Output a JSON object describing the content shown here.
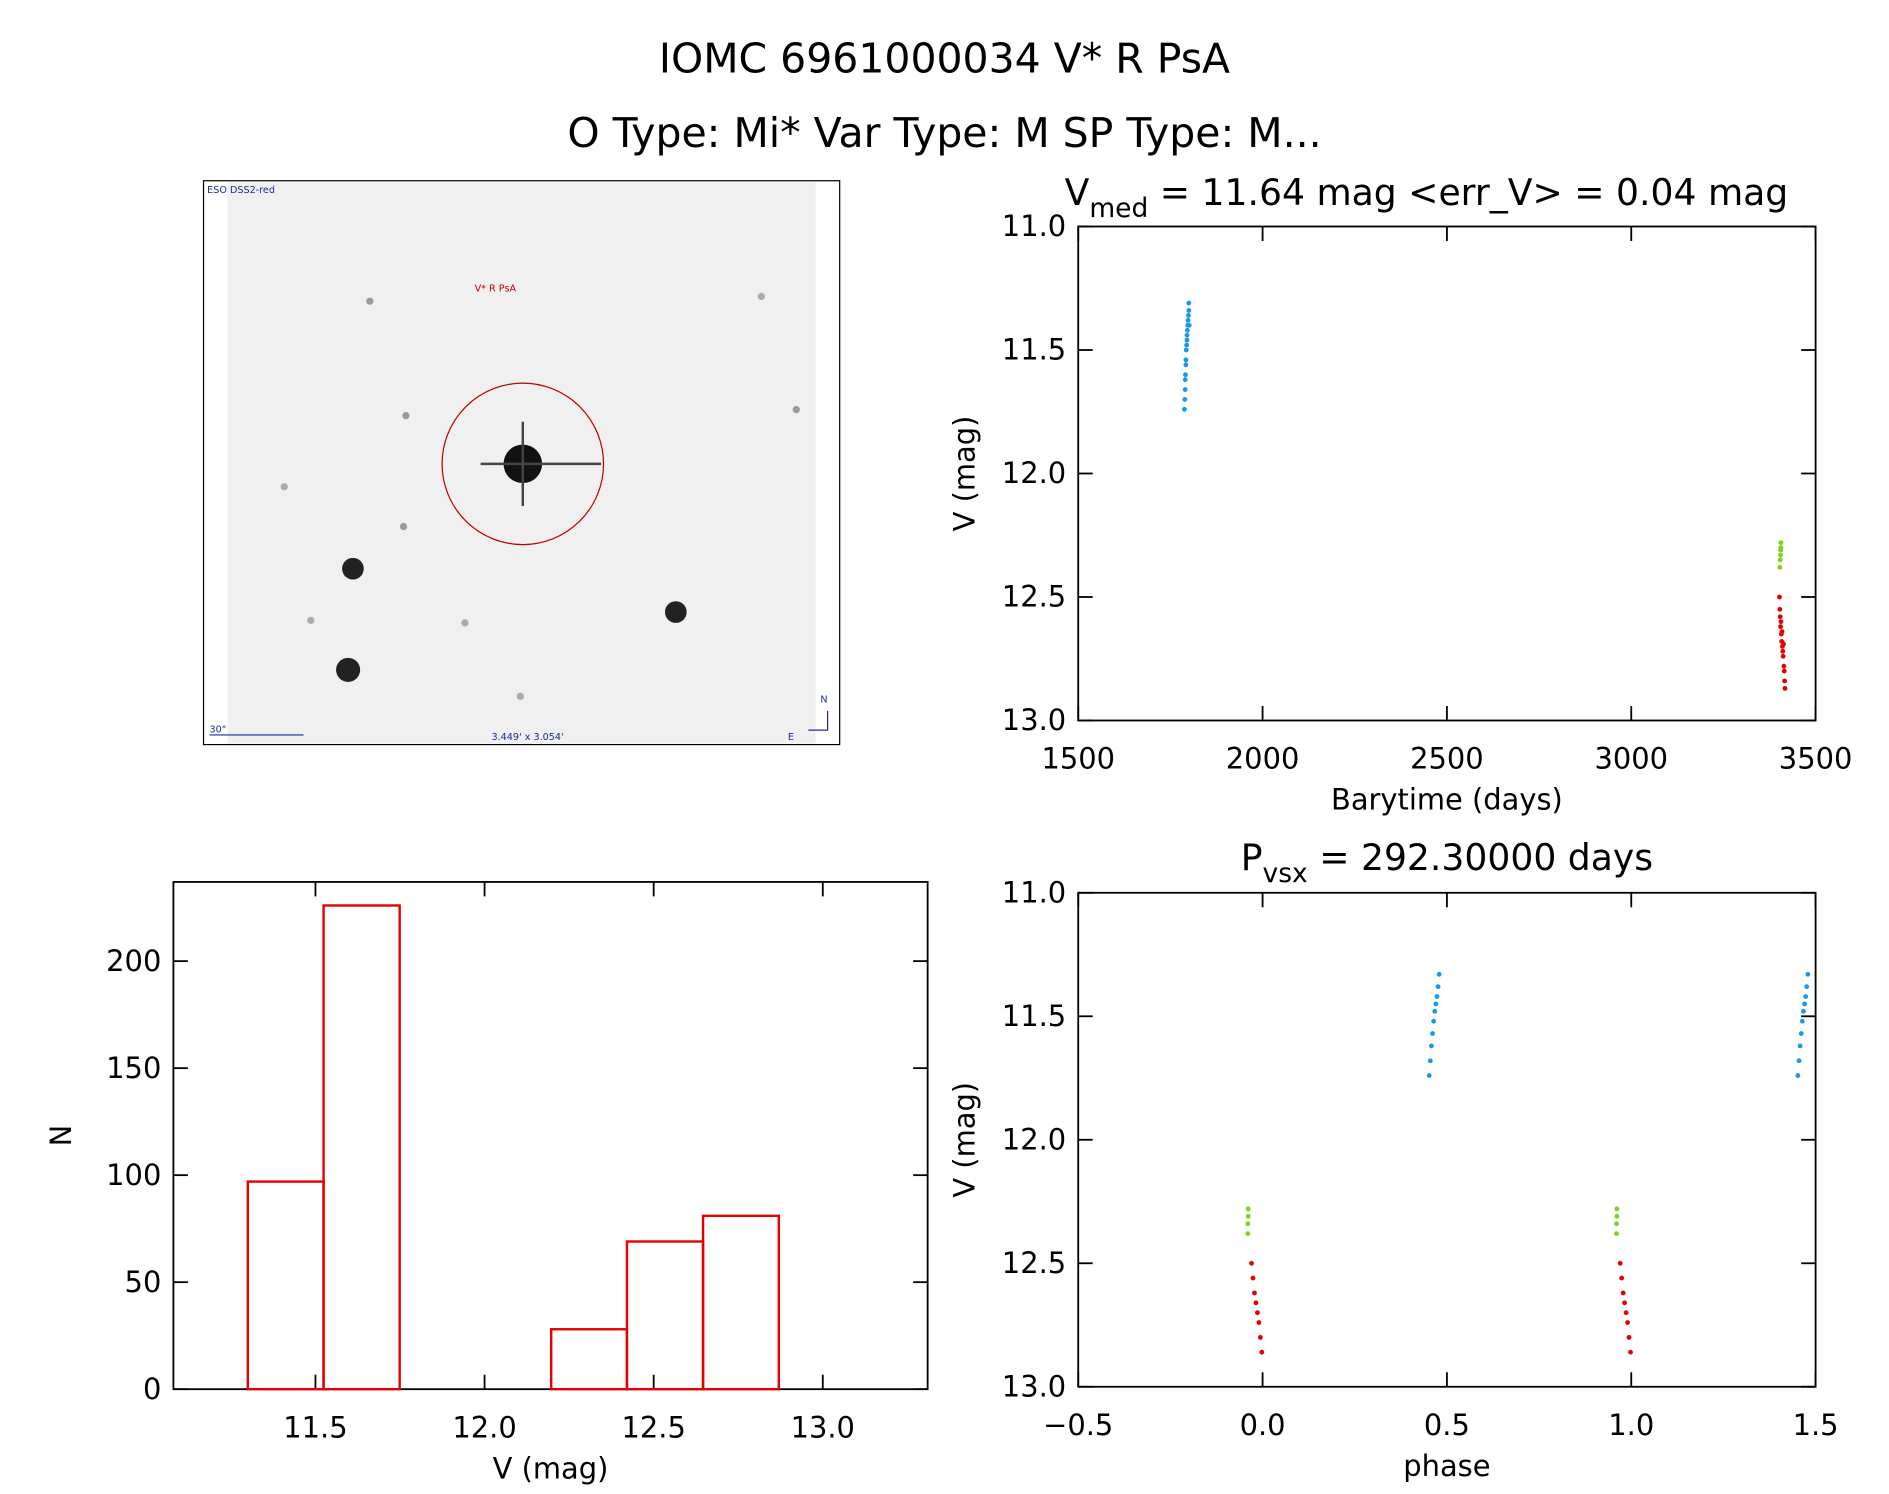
{
  "header": {
    "title": "IOMC 6961000034   V* R PsA",
    "subtitle": "O Type: Mi*  Var Type: M   SP Type: M..."
  },
  "image_panel": {
    "survey": "ESO DSS2-red",
    "target": "V* R PsA",
    "scale": "30\"",
    "size": "3.449' x 3.054'",
    "north": "N",
    "east": "E"
  },
  "chart_data": [
    {
      "type": "scatter",
      "title": {
        "main": "V",
        "sub": "med",
        "rest": " = 11.64 mag <err_V> = 0.04 mag"
      },
      "xlabel": "Barytime (days)",
      "ylabel": "V (mag)",
      "xlim": [
        1500,
        3500
      ],
      "xticks": [
        1500,
        2000,
        2500,
        3000,
        3500
      ],
      "ylim": [
        13,
        11
      ],
      "yticks": [
        {
          "value": 11,
          "label": "11.0"
        },
        11.5,
        {
          "value": 12,
          "label": "12.0"
        },
        12.5,
        {
          "value": 13,
          "label": "13.0"
        }
      ],
      "series": [
        {
          "color": "#1a9ae6",
          "x": [
            1788,
            1789,
            1790,
            1790,
            1791,
            1792,
            1792,
            1793,
            1794,
            1795,
            1795,
            1796,
            1797,
            1798,
            1799,
            1800,
            1800,
            1801
          ],
          "values": [
            11.74,
            11.7,
            11.66,
            11.62,
            11.6,
            11.56,
            11.54,
            11.5,
            11.48,
            11.46,
            11.44,
            11.42,
            11.4,
            11.38,
            11.36,
            11.34,
            11.31,
            11.4
          ]
        },
        {
          "color": "#7ed321",
          "x": [
            3403,
            3404,
            3405,
            3405,
            3406,
            3406
          ],
          "values": [
            12.38,
            12.35,
            12.33,
            12.31,
            12.3,
            12.28
          ]
        },
        {
          "color": "#e60000",
          "x": [
            3402,
            3403,
            3404,
            3405,
            3406,
            3407,
            3408,
            3409,
            3410,
            3411,
            3412,
            3413,
            3414,
            3415,
            3416,
            3417
          ],
          "values": [
            12.5,
            12.55,
            12.58,
            12.62,
            12.6,
            12.65,
            12.68,
            12.64,
            12.7,
            12.72,
            12.74,
            12.69,
            12.78,
            12.8,
            12.84,
            12.87
          ]
        }
      ]
    },
    {
      "type": "scatter",
      "title": {
        "main": "P",
        "sub": "vsx",
        "rest": " = 292.30000 days"
      },
      "xlabel": "phase",
      "ylabel": "V (mag)",
      "xlim": [
        -0.5,
        1.5
      ],
      "xticks": [
        {
          "value": -0.5,
          "label": "−0.5"
        },
        {
          "value": 0,
          "label": "0.0"
        },
        0.5,
        {
          "value": 1,
          "label": "1.0"
        },
        1.5
      ],
      "ylim": [
        13,
        11
      ],
      "yticks": [
        {
          "value": 11,
          "label": "11.0"
        },
        11.5,
        {
          "value": 12,
          "label": "12.0"
        },
        12.5,
        {
          "value": 13,
          "label": "13.0"
        }
      ],
      "series": [
        {
          "color": "#1a9ae6",
          "x": [
            0.452,
            0.455,
            0.458,
            0.461,
            0.464,
            0.467,
            0.47,
            0.473,
            0.476,
            0.479,
            1.452,
            1.455,
            1.458,
            1.461,
            1.464,
            1.467,
            1.47,
            1.473,
            1.476,
            1.479
          ],
          "values": [
            11.74,
            11.68,
            11.62,
            11.57,
            11.52,
            11.48,
            11.45,
            11.42,
            11.38,
            11.33,
            11.74,
            11.68,
            11.62,
            11.57,
            11.52,
            11.48,
            11.45,
            11.42,
            11.38,
            11.33
          ]
        },
        {
          "color": "#7ed321",
          "x": [
            -0.04,
            -0.04,
            -0.039,
            -0.039,
            0.96,
            0.96,
            0.961,
            0.961
          ],
          "values": [
            12.38,
            12.34,
            12.31,
            12.28,
            12.38,
            12.34,
            12.31,
            12.28
          ]
        },
        {
          "color": "#e60000",
          "x": [
            -0.03,
            -0.026,
            -0.022,
            -0.018,
            -0.014,
            -0.01,
            -0.006,
            -0.002,
            0.97,
            0.974,
            0.978,
            0.982,
            0.986,
            0.99,
            0.994,
            0.998
          ],
          "values": [
            12.5,
            12.56,
            12.62,
            12.66,
            12.7,
            12.74,
            12.8,
            12.86,
            12.5,
            12.56,
            12.62,
            12.66,
            12.7,
            12.74,
            12.8,
            12.86
          ]
        }
      ]
    },
    {
      "type": "histogram",
      "xlabel": "V (mag)",
      "ylabel": "N",
      "color": "#e60000",
      "bins": [
        11.3,
        11.524,
        11.749,
        11.973,
        12.197,
        12.421,
        12.646,
        12.87
      ],
      "values": [
        97,
        226,
        0,
        0,
        28,
        69,
        81
      ],
      "xlim": [
        11.08,
        13.31
      ],
      "xticks": [
        11.5,
        {
          "value": 12,
          "label": "12.0"
        },
        12.5,
        {
          "value": 13,
          "label": "13.0"
        }
      ],
      "ylim": [
        0,
        237
      ],
      "yticks": [
        0,
        50,
        100,
        150,
        200
      ]
    }
  ]
}
